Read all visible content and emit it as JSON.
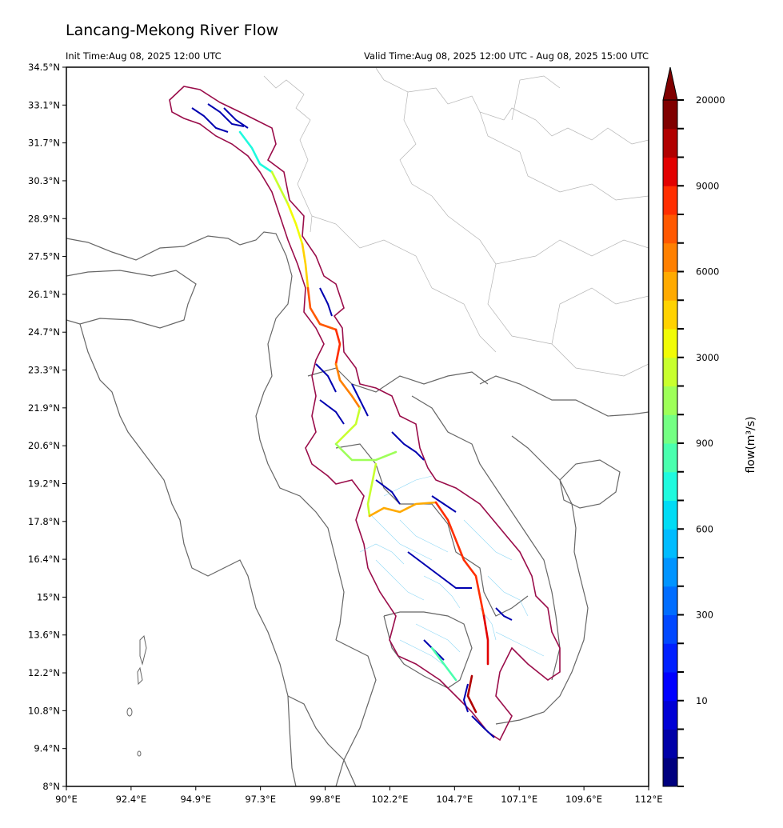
{
  "header": {
    "title": "Lancang-Mekong River Flow",
    "init_time": "Init Time:Aug 08, 2025 12:00 UTC",
    "valid_time": "Valid Time:Aug 08, 2025 12:00 UTC - Aug 08, 2025 15:00 UTC"
  },
  "axes": {
    "lat_labels": [
      "34.5°N",
      "33.1°N",
      "31.7°N",
      "30.3°N",
      "28.9°N",
      "27.5°N",
      "26.1°N",
      "24.7°N",
      "23.3°N",
      "21.9°N",
      "20.6°N",
      "19.2°N",
      "17.8°N",
      "16.4°N",
      "15°N",
      "13.6°N",
      "12.2°N",
      "10.8°N",
      "9.4°N",
      "8°N"
    ],
    "lon_labels": [
      "90°E",
      "92.4°E",
      "94.9°E",
      "97.3°E",
      "99.8°E",
      "102.2°E",
      "104.7°E",
      "107.1°E",
      "109.6°E",
      "112°E"
    ],
    "lon_range": [
      90,
      112
    ],
    "lat_range": [
      8,
      34.5
    ]
  },
  "colorbar": {
    "label": "flow(m³/s)",
    "tick_labels": [
      "20000",
      "9000",
      "6000",
      "3000",
      "900",
      "600",
      "300",
      "10"
    ],
    "colors": [
      "#00007f",
      "#0000a8",
      "#0000d5",
      "#0000ff",
      "#0020ff",
      "#0048ff",
      "#006dff",
      "#0094ff",
      "#00bcff",
      "#00dcf5",
      "#1ffade",
      "#4affae",
      "#74ff83",
      "#9eff59",
      "#c8ff2e",
      "#f1fc06",
      "#ffd200",
      "#ffaa00",
      "#ff8000",
      "#ff5800",
      "#ff2e00",
      "#e20000",
      "#b10000",
      "#800000"
    ],
    "extend": "max"
  }
}
